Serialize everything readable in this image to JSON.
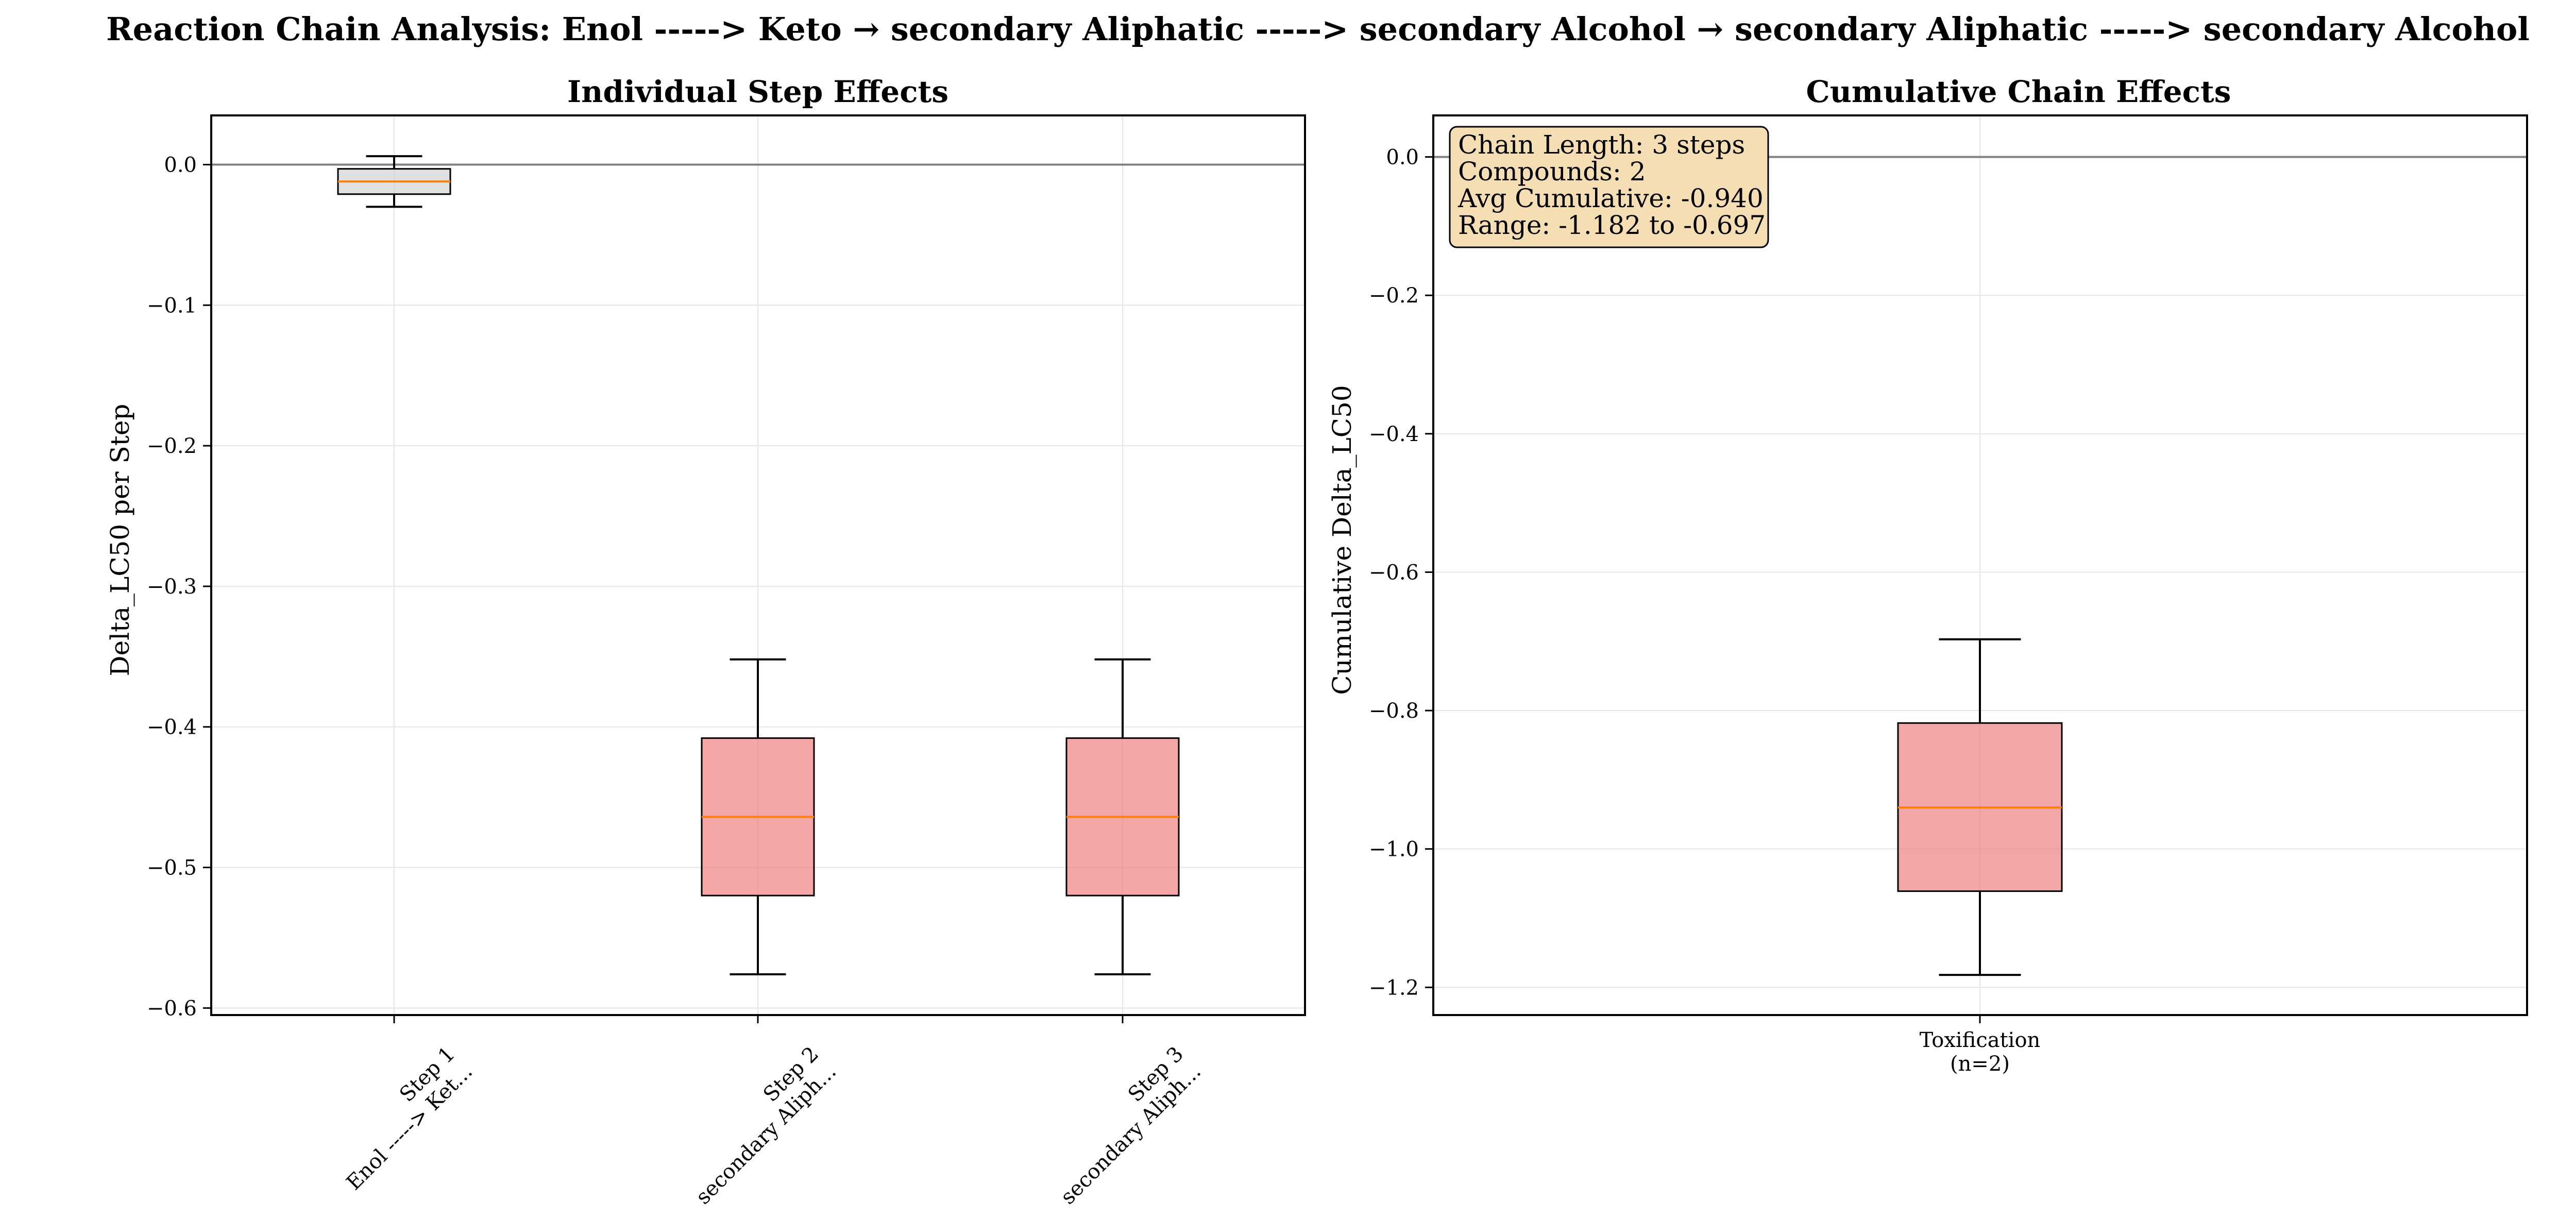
{
  "suptitle": "Reaction Chain Analysis: Enol -----> Keto → secondary Aliphatic -----> secondary Alcohol → secondary Aliphatic -----> secondary Alcohol",
  "chart_data": [
    {
      "type": "box",
      "title": "Individual Step Effects",
      "xlabel": "",
      "ylabel": "Delta_LC50 per Step",
      "ylim": [
        -0.605,
        0.035
      ],
      "yticks": [
        0.0,
        -0.1,
        -0.2,
        -0.3,
        -0.4,
        -0.5,
        -0.6
      ],
      "ytick_labels": [
        "0.0",
        "−0.1",
        "−0.2",
        "−0.3",
        "−0.4",
        "−0.5",
        "−0.6"
      ],
      "grid": true,
      "zero_line": 0.0,
      "categories": [
        [
          "Step 1",
          "Enol -----> Ket..."
        ],
        [
          "Step 2",
          "secondary Aliph..."
        ],
        [
          "Step 3",
          "secondary Aliph..."
        ]
      ],
      "boxes": [
        {
          "whislo": -0.03,
          "q1": -0.021,
          "med": -0.012,
          "q3": -0.003,
          "whishi": 0.006,
          "color": "#d3d3d3"
        },
        {
          "whislo": -0.576,
          "q1": -0.52,
          "med": -0.464,
          "q3": -0.408,
          "whishi": -0.352,
          "color": "#f08080"
        },
        {
          "whislo": -0.576,
          "q1": -0.52,
          "med": -0.464,
          "q3": -0.408,
          "whishi": -0.352,
          "color": "#f08080"
        }
      ]
    },
    {
      "type": "box",
      "title": "Cumulative Chain Effects",
      "xlabel": "",
      "ylabel": "Cumulative Delta_LC50",
      "ylim": [
        -1.24,
        0.06
      ],
      "yticks": [
        0.0,
        -0.2,
        -0.4,
        -0.6,
        -0.8,
        -1.0,
        -1.2
      ],
      "ytick_labels": [
        "0.0",
        "−0.2",
        "−0.4",
        "−0.6",
        "−0.8",
        "−1.0",
        "−1.2"
      ],
      "grid": true,
      "zero_line": 0.0,
      "categories": [
        [
          "Toxification",
          "(n=2)"
        ]
      ],
      "boxes": [
        {
          "whislo": -1.182,
          "q1": -1.061,
          "med": -0.94,
          "q3": -0.818,
          "whishi": -0.697,
          "color": "#f08080"
        }
      ],
      "annotation": [
        "Chain Length: 3 steps",
        "Compounds: 2",
        "Avg Cumulative: -0.940",
        "Range: -1.182 to -0.697"
      ],
      "annotation_position": "top-left"
    }
  ],
  "colors": {
    "median": "#ff7f0e",
    "box_edge": "#000000",
    "zero_line": "#808080",
    "grid": "#e6e6e6",
    "annotation_fill": "#f5deb3"
  }
}
